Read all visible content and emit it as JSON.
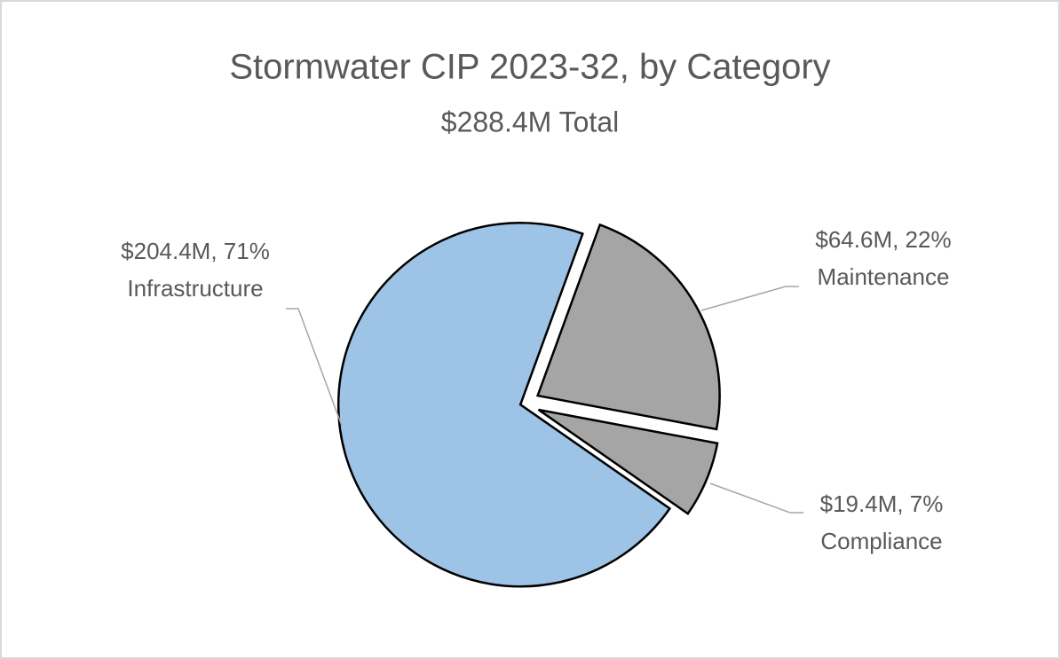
{
  "chart_data": {
    "type": "pie",
    "title": "Stormwater CIP 2023-32, by Category",
    "subtitle": "$288.4M Total",
    "categories": [
      "Infrastructure",
      "Maintenance",
      "Compliance"
    ],
    "values": [
      204.4,
      64.6,
      19.4
    ],
    "value_labels": [
      "$204.4M, 71%",
      "$64.6M, 22%",
      "$19.4M, 7%"
    ],
    "colors": [
      "#9dc3e6",
      "#a5a5a5",
      "#a5a5a5"
    ]
  }
}
